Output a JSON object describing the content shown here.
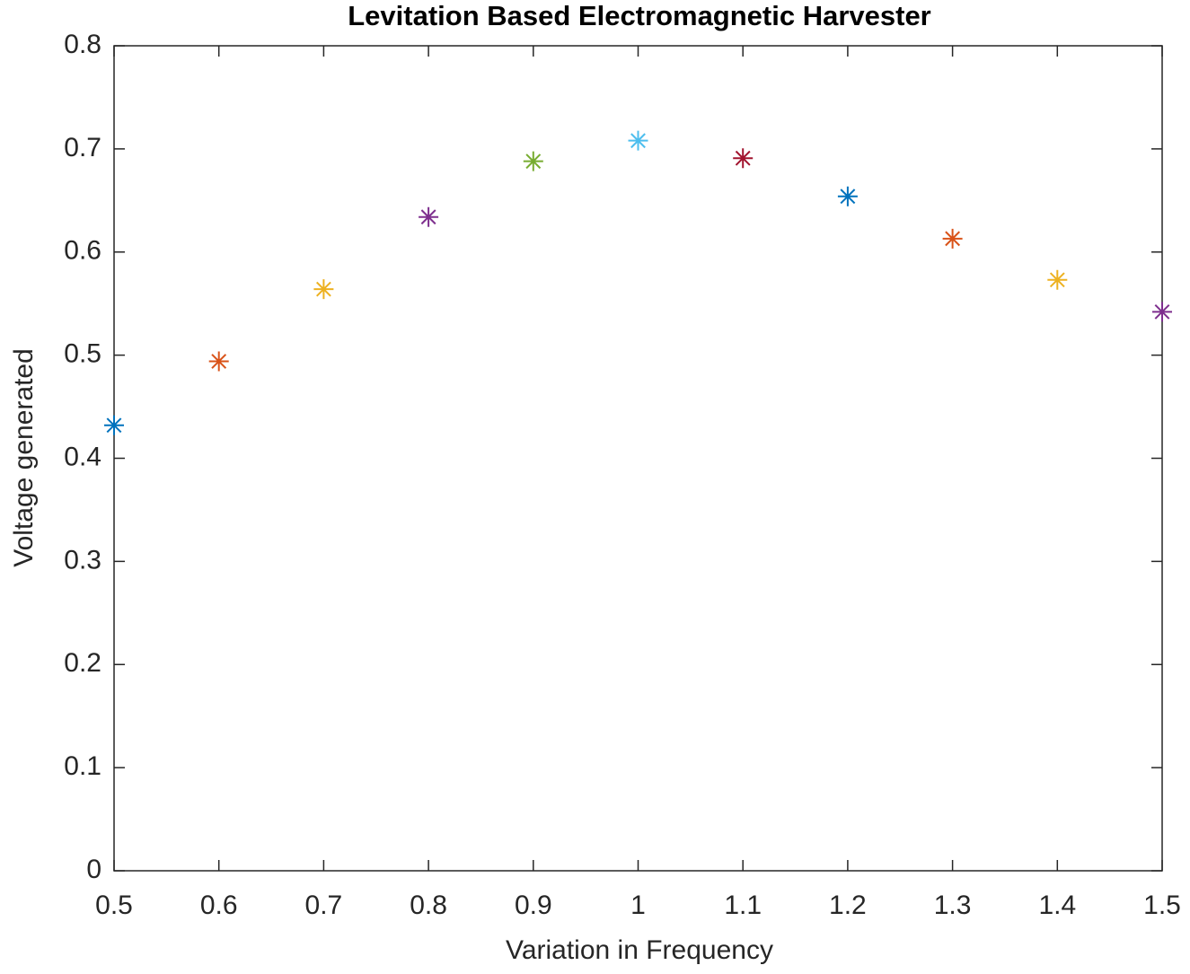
{
  "chart_data": {
    "type": "scatter",
    "title": "Levitation Based Electromagnetic Harvester",
    "x_label": "Variation in Frequency",
    "y_label": "Voltage generated",
    "x": [
      0.5,
      0.6,
      0.7,
      0.8,
      0.9,
      1.0,
      1.1,
      1.2,
      1.3,
      1.4,
      1.5
    ],
    "y": [
      0.432,
      0.494,
      0.564,
      0.634,
      0.688,
      0.708,
      0.691,
      0.654,
      0.613,
      0.573,
      0.542
    ],
    "colors": [
      "#0072BD",
      "#D95319",
      "#EDB120",
      "#7E2F8E",
      "#77AC30",
      "#4DBEEE",
      "#A2142F",
      "#0072BD",
      "#D95319",
      "#EDB120",
      "#7E2F8E"
    ],
    "marker": "asterisk",
    "xlim": [
      0.5,
      1.5
    ],
    "xticks": [
      0.5,
      0.6,
      0.7,
      0.8,
      0.9,
      1,
      1.1,
      1.2,
      1.3,
      1.4,
      1.5
    ],
    "ylim": [
      0,
      0.8
    ],
    "yticks": [
      0,
      0.1,
      0.2,
      0.3,
      0.4,
      0.5,
      0.6,
      0.7,
      0.8
    ]
  }
}
